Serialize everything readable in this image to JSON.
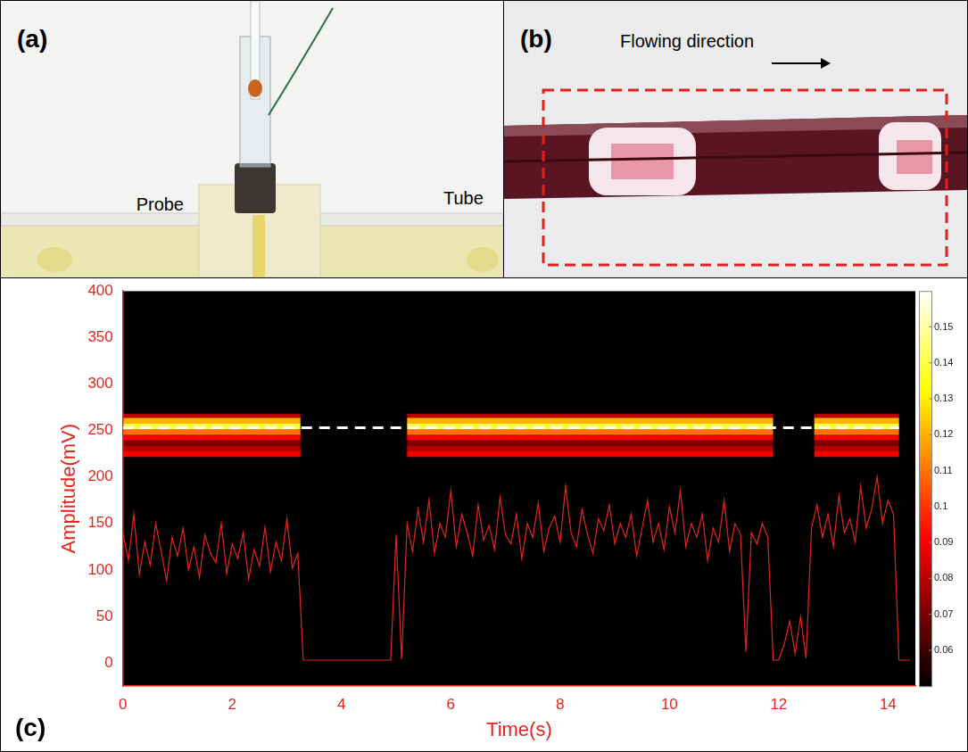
{
  "panel_a": {
    "label": "(a)",
    "annotations": [
      "Probe",
      "Tube"
    ]
  },
  "panel_b": {
    "label": "(b)",
    "annotations": [
      "Flowing direction"
    ]
  },
  "chart_data": {
    "label": "(c)",
    "type": "line",
    "x_label": "Time(s)",
    "y_label": "Amplitude(mV)",
    "xlim": [
      0,
      14.5
    ],
    "xticks": [
      0,
      2,
      4,
      6,
      8,
      10,
      12,
      14
    ],
    "ylim": [
      -25,
      400
    ],
    "yticks": [
      0,
      50,
      100,
      150,
      200,
      250,
      300,
      350,
      400
    ],
    "grid": false,
    "color": "#e3261c",
    "x": [
      0,
      0.1,
      0.2,
      0.3,
      0.4,
      0.5,
      0.6,
      0.7,
      0.8,
      0.9,
      1,
      1.1,
      1.2,
      1.3,
      1.4,
      1.5,
      1.6,
      1.7,
      1.8,
      1.9,
      2,
      2.1,
      2.2,
      2.3,
      2.4,
      2.5,
      2.6,
      2.7,
      2.8,
      2.9,
      3,
      3.1,
      3.2,
      3.3,
      3.4,
      3.5,
      3.6,
      3.7,
      3.8,
      3.9,
      4,
      4.1,
      4.2,
      4.3,
      4.4,
      4.5,
      4.6,
      4.7,
      4.8,
      4.9,
      5,
      5.1,
      5.2,
      5.3,
      5.4,
      5.5,
      5.6,
      5.7,
      5.8,
      5.9,
      6,
      6.1,
      6.2,
      6.3,
      6.4,
      6.5,
      6.6,
      6.7,
      6.8,
      6.9,
      7,
      7.1,
      7.2,
      7.3,
      7.4,
      7.5,
      7.6,
      7.7,
      7.8,
      7.9,
      8,
      8.1,
      8.2,
      8.3,
      8.4,
      8.5,
      8.6,
      8.7,
      8.8,
      8.9,
      9,
      9.1,
      9.2,
      9.3,
      9.4,
      9.5,
      9.6,
      9.7,
      9.8,
      9.9,
      10,
      10.1,
      10.2,
      10.3,
      10.4,
      10.5,
      10.6,
      10.7,
      10.8,
      10.9,
      11,
      11.1,
      11.2,
      11.3,
      11.4,
      11.5,
      11.6,
      11.7,
      11.8,
      11.9,
      12,
      12.1,
      12.2,
      12.3,
      12.4,
      12.5,
      12.6,
      12.7,
      12.8,
      12.9,
      13,
      13.1,
      13.2,
      13.3,
      13.4,
      13.5,
      13.6,
      13.7,
      13.8,
      13.9,
      14,
      14.1,
      14.2,
      14.3,
      14.4
    ],
    "values": [
      140,
      110,
      160,
      95,
      130,
      105,
      150,
      120,
      88,
      135,
      115,
      145,
      100,
      125,
      92,
      138,
      118,
      108,
      150,
      96,
      128,
      112,
      140,
      90,
      122,
      104,
      146,
      98,
      130,
      110,
      155,
      102,
      118,
      3,
      3,
      3,
      3,
      3,
      3,
      3,
      3,
      3,
      3,
      3,
      3,
      3,
      3,
      3,
      3,
      3,
      138,
      4,
      150,
      120,
      165,
      130,
      175,
      118,
      150,
      135,
      185,
      125,
      160,
      140,
      115,
      170,
      132,
      148,
      122,
      178,
      138,
      128,
      160,
      112,
      150,
      135,
      172,
      120,
      145,
      158,
      130,
      190,
      140,
      125,
      165,
      138,
      118,
      155,
      142,
      170,
      128,
      150,
      135,
      160,
      115,
      145,
      175,
      130,
      150,
      122,
      168,
      140,
      185,
      125,
      150,
      135,
      160,
      110,
      145,
      130,
      175,
      120,
      150,
      138,
      12,
      140,
      128,
      150,
      135,
      3,
      3,
      20,
      45,
      10,
      50,
      5,
      145,
      170,
      135,
      160,
      125,
      180,
      140,
      155,
      130,
      190,
      145,
      165,
      200,
      150,
      175,
      160,
      3,
      3,
      3
    ],
    "reference_line": {
      "y": 253,
      "x": [
        0,
        14.2
      ],
      "color": "#ffffff",
      "line_style": "dashed"
    },
    "heatmap": {
      "x_edges": [
        0,
        3.25,
        5.2,
        11.9,
        12.65,
        14.2
      ],
      "y_edges": [
        222,
        228,
        234,
        240,
        246,
        252,
        258,
        264,
        268
      ],
      "cells": [
        [
          0.09,
          0.05,
          0.09,
          0.05,
          0.09
        ],
        [
          0.08,
          0.05,
          0.08,
          0.05,
          0.08
        ],
        [
          0.07,
          0.05,
          0.07,
          0.05,
          0.07
        ],
        [
          0.09,
          0.05,
          0.09,
          0.05,
          0.09
        ],
        [
          0.11,
          0.05,
          0.11,
          0.05,
          0.11
        ],
        [
          0.14,
          0.05,
          0.14,
          0.05,
          0.14
        ],
        [
          0.12,
          0.05,
          0.12,
          0.05,
          0.12
        ],
        [
          0.08,
          0.05,
          0.08,
          0.05,
          0.08
        ]
      ]
    },
    "colorbar": {
      "range": [
        0.05,
        0.16
      ],
      "ticks": [
        0.06,
        0.07,
        0.08,
        0.09,
        0.1,
        0.11,
        0.12,
        0.13,
        0.14,
        0.15
      ]
    }
  }
}
